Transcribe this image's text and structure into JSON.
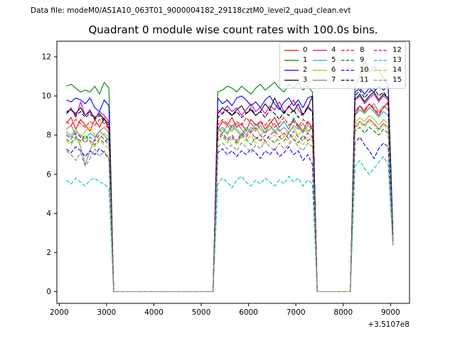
{
  "chart_data": {
    "type": "line",
    "figure_text": "Data file: modeM0/AS1A10_063T01_9000004182_29118cztM0_level2_quad_clean.evt",
    "title": "Quadrant 0 module wise count rates with 100.0s bins.",
    "xlabel": "",
    "ylabel": "",
    "x_offset_label": "+3.5107e8",
    "xlim": [
      1950,
      9400
    ],
    "ylim": [
      -0.6,
      12.8
    ],
    "xticks": [
      2000,
      3000,
      4000,
      5000,
      6000,
      7000,
      8000,
      9000
    ],
    "yticks": [
      0,
      2,
      4,
      6,
      8,
      10,
      12
    ],
    "grid": false,
    "legend_position": "upper right",
    "legend_columns": 4,
    "bins": {
      "x_start": 2150,
      "x_step": 100,
      "gap1_zero_bins": 22,
      "gap2_zero_bins": 8,
      "note": "full series = h1 values, 22 zeros (x 3150-5250), h2 values, 8 zeros (x 7450-8150), h3 values, end value at x 9050"
    },
    "series": [
      {
        "name": "0",
        "color": "#ff0000",
        "dashed": false,
        "h1": [
          8.6,
          8.9,
          8.3,
          8.8,
          8.5,
          8.2,
          8.8,
          8.4,
          8.9,
          8.3
        ],
        "h2": [
          8.3,
          8.7,
          8.5,
          8.9,
          8.4,
          8.6,
          8.2,
          8.8,
          8.5,
          8.7,
          8.3,
          8.6,
          8.9,
          8.4,
          8.7,
          8.3,
          8.8,
          8.5,
          8.2,
          8.7,
          8.4
        ],
        "h3": [
          9.0,
          9.5,
          9.2,
          9.6,
          9.3,
          9.0,
          9.4,
          9.7
        ],
        "end": 2.6
      },
      {
        "name": "1",
        "color": "#008000",
        "dashed": false,
        "h1": [
          10.5,
          10.6,
          10.4,
          10.2,
          10.3,
          10.2,
          10.5,
          10.1,
          10.7,
          10.4
        ],
        "h2": [
          10.2,
          10.3,
          10.5,
          10.4,
          10.2,
          10.5,
          10.3,
          10.1,
          10.4,
          10.6,
          10.3,
          10.5,
          10.7,
          10.4,
          10.2,
          10.6,
          10.4,
          10.7,
          10.3,
          10.5,
          10.2
        ],
        "h3": [
          10.6,
          11.0,
          11.8,
          11.2,
          11.5,
          11.3,
          10.9,
          10.6
        ],
        "end": 3.1
      },
      {
        "name": "2",
        "color": "#0000ff",
        "dashed": false,
        "h1": [
          9.8,
          9.7,
          9.9,
          9.8,
          9.6,
          9.9,
          9.4,
          9.2,
          9.8,
          9.5
        ],
        "h2": [
          9.9,
          9.6,
          9.8,
          9.5,
          9.9,
          10.0,
          9.8,
          9.5,
          9.7,
          9.4,
          9.8,
          10.0,
          9.6,
          9.3,
          9.7,
          9.9,
          9.5,
          9.8,
          9.4,
          9.9,
          10.0
        ],
        "h3": [
          10.2,
          10.4,
          10.1,
          10.4,
          10.2,
          10.5,
          10.3,
          10.5
        ],
        "end": 2.9
      },
      {
        "name": "3",
        "color": "#000000",
        "dashed": false,
        "h1": [
          9.2,
          9.3,
          9.1,
          9.4,
          9.0,
          9.2,
          8.9,
          9.1,
          8.8,
          8.6
        ],
        "h2": [
          9.1,
          9.4,
          9.2,
          9.0,
          9.3,
          9.5,
          9.1,
          9.3,
          9.0,
          9.2,
          9.6,
          9.3,
          9.9,
          9.4,
          9.1,
          9.5,
          9.2,
          9.6,
          9.0,
          9.4,
          10.0
        ],
        "h3": [
          9.8,
          10.1,
          9.7,
          10.0,
          10.2,
          9.8,
          10.1,
          9.9
        ],
        "end": 2.8
      },
      {
        "name": "4",
        "color": "#bf00bf",
        "dashed": false,
        "h1": [
          9.1,
          9.4,
          8.9,
          9.7,
          9.0,
          9.3,
          8.8,
          9.2,
          9.0,
          8.7
        ],
        "h2": [
          9.3,
          9.1,
          9.5,
          9.2,
          9.4,
          9.0,
          9.3,
          9.6,
          9.2,
          9.4,
          9.1,
          9.5,
          9.3,
          9.7,
          9.2,
          9.4,
          9.8,
          9.3,
          9.0,
          9.5,
          9.2
        ],
        "h3": [
          9.8,
          10.0,
          9.6,
          9.9,
          10.1,
          9.7,
          10.0,
          9.8
        ],
        "end": 2.7
      },
      {
        "name": "5",
        "color": "#00bfbf",
        "dashed": false,
        "h1": [
          8.1,
          7.9,
          8.2,
          8.0,
          7.8,
          8.1,
          7.9,
          8.2,
          8.0,
          7.7
        ],
        "h2": [
          8.2,
          8.4,
          8.1,
          8.5,
          8.3,
          8.0,
          8.4,
          8.2,
          8.6,
          8.3,
          8.1,
          8.5,
          8.2,
          8.4,
          8.7,
          8.3,
          8.9,
          8.4,
          8.1,
          8.5,
          8.3
        ],
        "h3": [
          9.0,
          9.3,
          9.1,
          9.4,
          9.2,
          8.9,
          9.2,
          9.0
        ],
        "end": 2.5
      },
      {
        "name": "6",
        "color": "#bfbf00",
        "dashed": false,
        "h1": [
          8.2,
          8.0,
          8.3,
          7.9,
          8.2,
          8.4,
          8.0,
          7.8,
          8.1,
          7.9
        ],
        "h2": [
          8.1,
          8.3,
          8.0,
          8.4,
          8.2,
          7.9,
          8.3,
          8.1,
          8.4,
          8.0,
          8.2,
          8.5,
          8.1,
          8.3,
          7.9,
          8.2,
          8.4,
          8.0,
          8.3,
          8.1,
          8.4
        ],
        "h3": [
          8.6,
          8.9,
          8.7,
          9.0,
          8.8,
          8.5,
          8.8,
          8.6
        ],
        "end": 2.4
      },
      {
        "name": "7",
        "color": "#808080",
        "dashed": false,
        "h1": [
          8.3,
          8.5,
          8.0,
          7.4,
          6.5,
          7.2,
          7.8,
          8.2,
          8.4,
          8.1
        ],
        "h2": [
          8.4,
          8.1,
          8.5,
          8.2,
          8.6,
          8.3,
          8.0,
          8.4,
          8.2,
          8.5,
          8.1,
          8.3,
          8.6,
          8.2,
          8.4,
          8.1,
          8.5,
          8.3,
          8.6,
          8.2,
          8.4
        ],
        "h3": [
          9.2,
          9.5,
          9.1,
          9.4,
          9.6,
          9.2,
          9.5,
          9.3
        ],
        "end": 2.6
      },
      {
        "name": "8",
        "color": "#ff0000",
        "dashed": true,
        "h1": [
          8.7,
          8.5,
          8.8,
          8.6,
          8.4,
          8.7,
          8.5,
          8.8,
          8.6,
          8.3
        ],
        "h2": [
          8.5,
          8.8,
          8.6,
          8.4,
          8.7,
          8.5,
          8.9,
          8.6,
          8.3,
          8.7,
          8.5,
          8.8,
          8.4,
          8.6,
          8.9,
          8.5,
          8.7,
          8.4,
          8.8,
          8.6,
          8.3
        ],
        "h3": [
          9.2,
          9.5,
          9.3,
          9.6,
          9.4,
          9.1,
          9.4,
          9.6
        ],
        "end": 2.7
      },
      {
        "name": "9",
        "color": "#008000",
        "dashed": true,
        "h1": [
          7.8,
          7.6,
          7.9,
          7.7,
          8.0,
          7.7,
          7.5,
          7.8,
          7.6,
          7.9
        ],
        "h2": [
          7.8,
          8.0,
          7.7,
          7.9,
          7.6,
          8.0,
          7.8,
          7.5,
          7.9,
          7.7,
          8.0,
          7.8,
          7.6,
          7.9,
          7.7,
          8.1,
          7.8,
          7.6,
          8.0,
          7.7,
          7.9
        ],
        "h3": [
          8.2,
          8.4,
          8.1,
          8.4,
          8.2,
          8.0,
          8.3,
          8.1
        ],
        "end": 2.3
      },
      {
        "name": "10",
        "color": "#0000ff",
        "dashed": true,
        "h1": [
          7.3,
          7.1,
          7.4,
          7.2,
          6.9,
          7.2,
          7.0,
          7.3,
          7.1,
          6.8
        ],
        "h2": [
          7.1,
          7.3,
          7.0,
          7.2,
          6.9,
          7.2,
          7.0,
          7.3,
          7.1,
          6.8,
          7.2,
          7.0,
          7.3,
          6.9,
          7.1,
          7.4,
          7.0,
          7.2,
          6.7,
          7.0,
          6.5
        ],
        "h3": [
          7.6,
          7.9,
          7.5,
          7.2,
          6.8,
          7.3,
          7.6,
          7.4
        ],
        "end": 2.4
      },
      {
        "name": "11",
        "color": "#000000",
        "dashed": true,
        "h1": [
          9.1,
          9.3,
          9.0,
          9.2,
          8.9,
          9.1,
          8.8,
          9.0,
          8.7,
          8.5
        ],
        "h2": [
          8.9,
          9.1,
          9.3,
          9.0,
          9.2,
          8.9,
          9.1,
          9.4,
          9.0,
          9.2,
          8.9,
          9.3,
          9.1,
          8.8,
          9.2,
          9.0,
          9.3,
          8.9,
          9.1,
          9.4,
          9.2
        ],
        "h3": [
          10.0,
          10.3,
          9.9,
          10.2,
          10.4,
          10.0,
          10.2,
          9.9
        ],
        "end": 2.8
      },
      {
        "name": "12",
        "color": "#bf00bf",
        "dashed": true,
        "h1": [
          8.0,
          7.8,
          8.1,
          7.9,
          7.6,
          7.9,
          7.7,
          8.0,
          7.8,
          7.5
        ],
        "h2": [
          7.9,
          8.1,
          7.8,
          8.0,
          7.7,
          8.1,
          7.9,
          8.2,
          7.8,
          8.0,
          7.7,
          8.0,
          8.2,
          7.9,
          8.1,
          7.8,
          8.2,
          7.9,
          7.7,
          8.1,
          7.9
        ],
        "h3": [
          8.4,
          8.7,
          8.5,
          8.8,
          8.6,
          8.3,
          8.6,
          8.4
        ],
        "end": 2.5
      },
      {
        "name": "13",
        "color": "#00bfbf",
        "dashed": true,
        "h1": [
          5.7,
          5.5,
          5.8,
          5.6,
          5.4,
          5.7,
          5.8,
          5.6,
          5.5,
          5.3
        ],
        "h2": [
          5.5,
          5.8,
          5.6,
          5.3,
          5.7,
          5.9,
          5.6,
          5.4,
          5.7,
          5.5,
          5.8,
          5.6,
          5.4,
          5.7,
          5.5,
          5.9,
          5.6,
          5.8,
          5.4,
          5.7,
          5.5
        ],
        "h3": [
          6.4,
          6.7,
          6.3,
          6.0,
          6.3,
          6.6,
          6.9,
          6.5
        ],
        "end": 2.3
      },
      {
        "name": "14",
        "color": "#bfbf00",
        "dashed": true,
        "h1": [
          7.7,
          7.5,
          7.8,
          7.6,
          7.9,
          7.6,
          7.4,
          7.7,
          7.5,
          7.3
        ],
        "h2": [
          7.7,
          7.9,
          7.6,
          7.8,
          7.5,
          7.9,
          7.7,
          8.0,
          7.6,
          7.8,
          7.5,
          7.8,
          8.0,
          7.7,
          7.9,
          7.6,
          8.0,
          7.7,
          7.5,
          7.9,
          7.7
        ],
        "h3": [
          8.3,
          8.6,
          8.4,
          8.7,
          8.5,
          8.2,
          8.5,
          8.3
        ],
        "end": 2.4
      },
      {
        "name": "15",
        "color": "#808080",
        "dashed": true,
        "h1": [
          7.2,
          7.0,
          6.7,
          7.1,
          6.4,
          6.8,
          7.3,
          6.9,
          7.2,
          6.8
        ],
        "h2": [
          7.4,
          7.6,
          7.3,
          7.5,
          7.2,
          7.6,
          7.4,
          7.1,
          7.5,
          7.3,
          7.7,
          7.4,
          7.2,
          7.6,
          7.3,
          7.5,
          7.8,
          7.4,
          7.2,
          7.6,
          7.4
        ],
        "h3": [
          8.4,
          8.7,
          8.5,
          8.8,
          8.6,
          8.3,
          8.6,
          8.4
        ],
        "end": 2.5
      }
    ]
  }
}
